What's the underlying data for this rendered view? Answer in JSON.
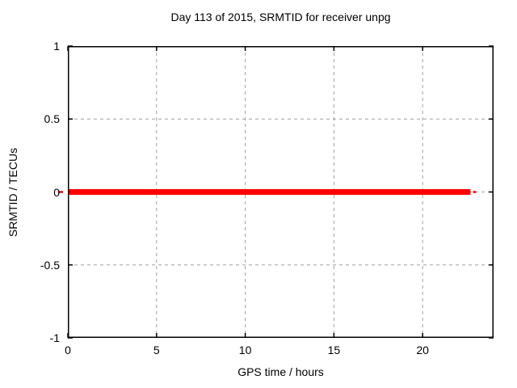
{
  "chart_data": {
    "type": "line",
    "title": "Day 113 of 2015, SRMTID for receiver unpg",
    "xlabel": "GPS time / hours",
    "ylabel": "SRMTID / TECUs",
    "xlim": [
      0,
      24
    ],
    "ylim": [
      -1,
      1
    ],
    "xtick_values": [
      0,
      5,
      10,
      15,
      20
    ],
    "xtick_labels": [
      "0",
      "5",
      "10",
      "15",
      "20"
    ],
    "ytick_values": [
      1,
      0.5,
      0,
      -0.5,
      -1
    ],
    "ytick_labels": [
      "1",
      "0.5",
      "0",
      "-0.5",
      "-1"
    ],
    "grid": true,
    "grid_color": "#a0a0a0",
    "axis_color": "#000000",
    "legend": "none",
    "series": [
      {
        "name": "SRMTID",
        "color": "#ff0000",
        "points": [
          [
            0,
            0
          ],
          [
            22.7,
            0
          ]
        ],
        "description": "constant value 0 TECUs from hour 0 to approximately hour 22.7"
      }
    ]
  }
}
